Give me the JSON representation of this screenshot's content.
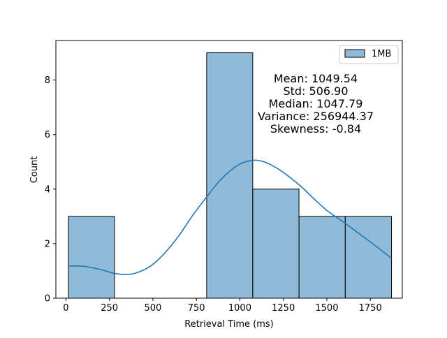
{
  "chart_data": {
    "type": "bar",
    "title": "",
    "xlabel": "Retrieval Time (ms)",
    "ylabel": "Count",
    "xlim": [
      -58,
      1934
    ],
    "ylim": [
      0,
      9.45
    ],
    "x_ticks": [
      0,
      250,
      500,
      750,
      1000,
      1250,
      1500,
      1750
    ],
    "x_tick_labels": [
      "0",
      "250",
      "500",
      "750",
      "1000",
      "1250",
      "1500",
      "1750"
    ],
    "y_ticks": [
      0,
      2,
      4,
      6,
      8
    ],
    "y_tick_labels": [
      "0",
      "2",
      "4",
      "6",
      "8"
    ],
    "grid": false,
    "legend_position": "top-right",
    "series": [
      {
        "name": "1MB",
        "color": "#1f77b4",
        "bins": [
          {
            "x0": 14,
            "x1": 279,
            "count": 3
          },
          {
            "x0": 279,
            "x1": 544,
            "count": 0
          },
          {
            "x0": 544,
            "x1": 809,
            "count": 0
          },
          {
            "x0": 809,
            "x1": 1074,
            "count": 9
          },
          {
            "x0": 1074,
            "x1": 1340,
            "count": 4
          },
          {
            "x0": 1340,
            "x1": 1606,
            "count": 3
          },
          {
            "x0": 1606,
            "x1": 1872,
            "count": 3
          }
        ]
      }
    ],
    "kde": {
      "color": "#1f77b4",
      "points": [
        [
          14,
          1.18
        ],
        [
          100,
          1.17
        ],
        [
          200,
          1.05
        ],
        [
          270,
          0.92
        ],
        [
          340,
          0.87
        ],
        [
          400,
          0.92
        ],
        [
          480,
          1.15
        ],
        [
          560,
          1.6
        ],
        [
          650,
          2.3
        ],
        [
          730,
          3.05
        ],
        [
          810,
          3.72
        ],
        [
          880,
          4.28
        ],
        [
          950,
          4.7
        ],
        [
          1010,
          4.95
        ],
        [
          1080,
          5.06
        ],
        [
          1140,
          5.0
        ],
        [
          1210,
          4.78
        ],
        [
          1290,
          4.42
        ],
        [
          1360,
          4.05
        ],
        [
          1430,
          3.62
        ],
        [
          1500,
          3.22
        ],
        [
          1560,
          2.95
        ],
        [
          1620,
          2.68
        ],
        [
          1700,
          2.3
        ],
        [
          1780,
          1.92
        ],
        [
          1872,
          1.46
        ]
      ]
    },
    "annotations": [
      "Mean: 1049.54",
      "Std: 506.90",
      "Median: 1047.79",
      "Variance: 256944.37",
      "Skewness: -0.84"
    ]
  }
}
